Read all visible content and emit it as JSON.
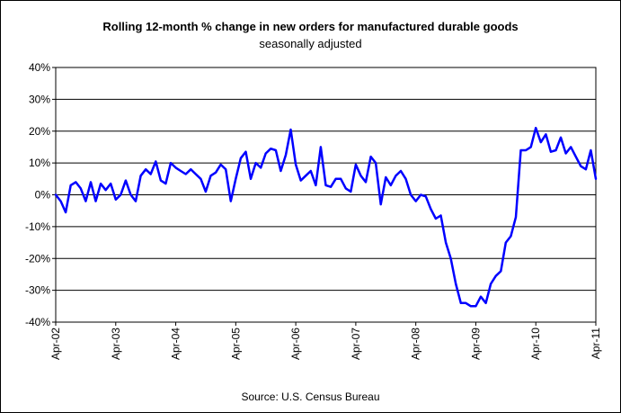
{
  "chart_data": {
    "type": "line",
    "title": "Rolling 12-month %  change in new orders for manufactured durable goods",
    "subtitle": "seasonally adjusted",
    "source": "Source: U.S. Census Bureau",
    "xlabel": "",
    "ylabel": "",
    "ylim": [
      -40,
      40
    ],
    "yticks": [
      "40%",
      "30%",
      "20%",
      "10%",
      "0%",
      "-10%",
      "-20%",
      "-30%",
      "-40%"
    ],
    "ytick_values": [
      40,
      30,
      20,
      10,
      0,
      -10,
      -20,
      -30,
      -40
    ],
    "xticks": [
      "Apr-02",
      "Apr-03",
      "Apr-04",
      "Apr-05",
      "Apr-06",
      "Apr-07",
      "Apr-08",
      "Apr-09",
      "Apr-10",
      "Apr-11"
    ],
    "grid": true,
    "legend": "none",
    "series_color": "#0000ff",
    "series": [
      {
        "values": [
          0,
          -2,
          -5.5,
          3,
          4,
          2,
          -2,
          4,
          -2,
          3.5,
          1.5,
          3.5,
          -1.5,
          0,
          4.5,
          0,
          -2,
          6,
          8,
          6.5,
          10.5,
          4.5,
          3.5,
          10,
          8.5,
          7.5,
          6.5,
          8,
          6.5,
          5,
          1,
          6,
          7,
          9.5,
          8,
          -2,
          5,
          11.5,
          13.5,
          5,
          10,
          8.5,
          13,
          14.5,
          14,
          7.5,
          12.5,
          20.5,
          9.5,
          4.5,
          6,
          7.5,
          3,
          15,
          3,
          2.5,
          5,
          5,
          2,
          1,
          9.5,
          6,
          4,
          12,
          10,
          -3,
          5.5,
          3,
          6,
          7.5,
          5,
          0,
          -2,
          0,
          -0.5,
          -4.5,
          -7.5,
          -6.5,
          -15,
          -20,
          -28,
          -34,
          -34,
          -35,
          -35,
          -32,
          -34,
          -28,
          -25.5,
          -24,
          -15,
          -13,
          -7,
          14,
          14,
          15,
          21,
          16.5,
          19,
          13.5,
          14,
          18,
          13,
          15,
          12,
          9,
          8,
          14,
          5
        ]
      }
    ]
  }
}
